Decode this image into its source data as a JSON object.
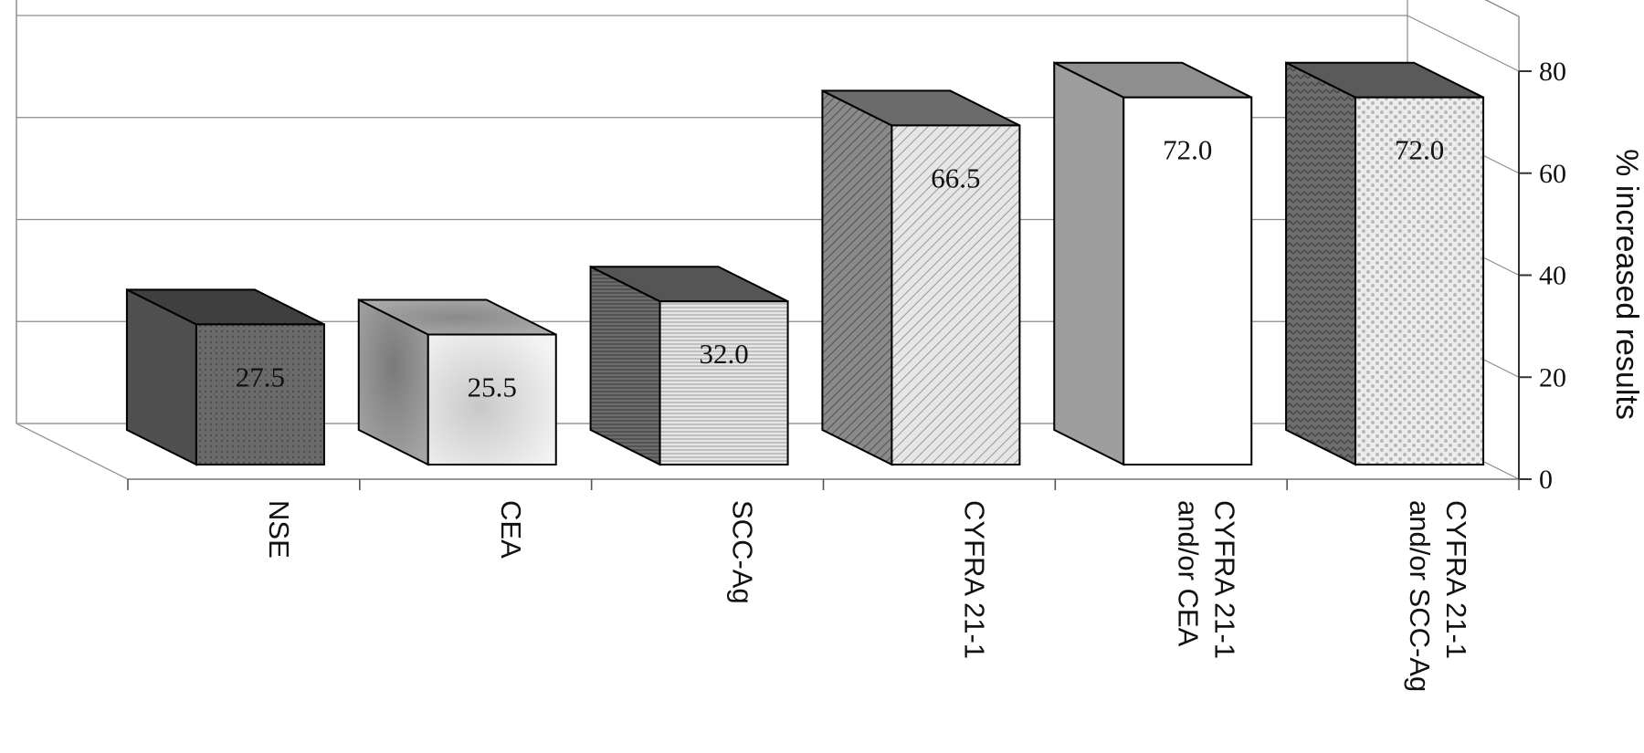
{
  "chart_data": {
    "type": "bar",
    "ylabel": "% increased results",
    "ylim": [
      0,
      80
    ],
    "yticks": [
      "0",
      "20",
      "40",
      "60",
      "80"
    ],
    "categories": [
      [
        "NSE"
      ],
      [
        "CEA"
      ],
      [
        "SCC-Ag"
      ],
      [
        "CYFRA 21-1"
      ],
      [
        "CYFRA 21-1",
        "and/or CEA"
      ],
      [
        "CYFRA 21-1",
        "and/or SCC-Ag"
      ]
    ],
    "values": [
      27.5,
      25.5,
      32.0,
      66.5,
      72.0,
      72.0
    ],
    "value_labels": [
      "27.5",
      "25.5",
      "32.0",
      "66.5",
      "72.0",
      "72.0"
    ],
    "grid": true,
    "style": "3d-bar"
  }
}
